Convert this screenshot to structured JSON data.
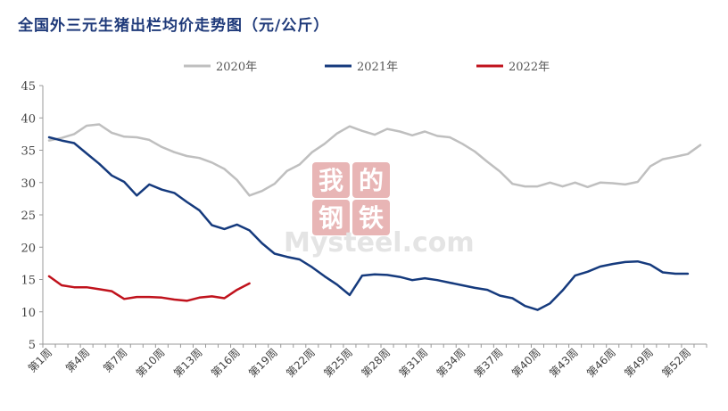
{
  "chart_data": {
    "type": "line",
    "title": "全国外三元生猪出栏均价走势图（元/公斤）",
    "ylim": [
      5,
      45
    ],
    "yticks": [
      5,
      10,
      15,
      20,
      25,
      30,
      35,
      40,
      45
    ],
    "x_count": 53,
    "x_tick_weeks": [
      1,
      4,
      7,
      10,
      13,
      16,
      19,
      22,
      25,
      28,
      31,
      34,
      37,
      40,
      43,
      46,
      49,
      52
    ],
    "x_tick_labels": [
      "第1周",
      "第4周",
      "第7周",
      "第10周",
      "第13周",
      "第16周",
      "第19周",
      "第22周",
      "第25周",
      "第28周",
      "第31周",
      "第34周",
      "第37周",
      "第40周",
      "第43周",
      "第46周",
      "第49周",
      "第52周"
    ],
    "legend_position": "top",
    "grid": false,
    "series": [
      {
        "name": "2020年",
        "color": "#bfbfbf",
        "values": [
          36.5,
          36.9,
          37.5,
          38.8,
          39.0,
          37.7,
          37.1,
          37.0,
          36.6,
          35.5,
          34.7,
          34.1,
          33.8,
          33.1,
          32.1,
          30.4,
          28.0,
          28.7,
          29.8,
          31.8,
          32.8,
          34.7,
          36.0,
          37.6,
          38.7,
          38.0,
          37.4,
          38.3,
          37.9,
          37.3,
          37.9,
          37.2,
          37.0,
          36.0,
          34.8,
          33.2,
          31.7,
          29.8,
          29.4,
          29.4,
          30.0,
          29.4,
          30.0,
          29.3,
          30.0,
          29.9,
          29.7,
          30.1,
          32.5,
          33.6,
          34.0,
          34.4,
          35.8
        ]
      },
      {
        "name": "2021年",
        "color": "#153a7d",
        "values": [
          37.0,
          36.5,
          36.1,
          34.5,
          32.9,
          31.1,
          30.1,
          28.0,
          29.7,
          28.9,
          28.4,
          27.0,
          25.7,
          23.4,
          22.8,
          23.5,
          22.6,
          20.6,
          19.0,
          18.5,
          18.1,
          16.9,
          15.5,
          14.2,
          12.6,
          15.6,
          15.8,
          15.7,
          15.4,
          14.9,
          15.2,
          14.9,
          14.5,
          14.1,
          13.7,
          13.4,
          12.5,
          12.1,
          10.9,
          10.3,
          11.3,
          13.3,
          15.6,
          16.2,
          17.0,
          17.4,
          17.7,
          17.8,
          17.3,
          16.1,
          15.9,
          15.9,
          null
        ]
      },
      {
        "name": "2022年",
        "color": "#c0121c",
        "values": [
          15.5,
          14.1,
          13.8,
          13.8,
          13.5,
          13.2,
          12.0,
          12.3,
          12.3,
          12.2,
          11.9,
          11.7,
          12.2,
          12.4,
          12.1,
          13.4,
          14.4,
          null,
          null,
          null,
          null,
          null,
          null,
          null,
          null,
          null,
          null,
          null,
          null,
          null,
          null,
          null,
          null,
          null,
          null,
          null,
          null,
          null,
          null,
          null,
          null,
          null,
          null,
          null,
          null,
          null,
          null,
          null,
          null,
          null,
          null,
          null,
          null
        ]
      }
    ]
  },
  "watermark": {
    "cn_chars": [
      "我",
      "的",
      "钢",
      "铁"
    ],
    "brand": "Mysteel.com"
  }
}
